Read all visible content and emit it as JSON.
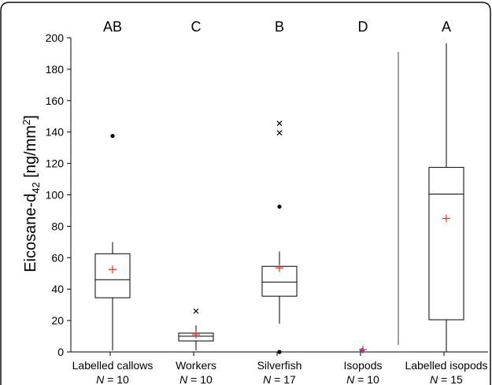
{
  "chart_data": {
    "type": "box",
    "ylabel": "Eicosane-d42 [ng/mm2]",
    "ylabel_parts": {
      "base": "Eicosane-d",
      "sub": "42",
      "unit_open": " [ng/mm",
      "sup": "2",
      "unit_close": "]"
    },
    "ylim": [
      0,
      200
    ],
    "yticks": [
      0,
      20,
      40,
      60,
      80,
      100,
      120,
      140,
      160,
      180,
      200
    ],
    "grid": false,
    "n_prefix": "N",
    "groups": [
      {
        "name": "Labelled callows",
        "n_text": "= 10",
        "letter": "AB",
        "whisker_low": 1,
        "q1": 34.5,
        "median": 46,
        "q3": 62.5,
        "whisker_high": 70,
        "mean": 52.5,
        "outliers": [
          {
            "y": 137.5,
            "symbol": "dot"
          }
        ]
      },
      {
        "name": "Workers",
        "n_text": "= 10",
        "letter": "C",
        "whisker_low": 1,
        "q1": 7,
        "median": 10,
        "q3": 12,
        "whisker_high": 17,
        "mean": 11,
        "outliers": [
          {
            "y": 26,
            "symbol": "cross"
          }
        ]
      },
      {
        "name": "Silverfish",
        "n_text": "= 17",
        "letter": "B",
        "whisker_low": 18,
        "q1": 35.5,
        "median": 44.5,
        "q3": 54.5,
        "whisker_high": 64,
        "mean": 53.5,
        "outliers": [
          {
            "y": 145.5,
            "symbol": "cross"
          },
          {
            "y": 139.5,
            "symbol": "cross"
          },
          {
            "y": 92.5,
            "symbol": "dot"
          },
          {
            "y": 0,
            "symbol": "dot"
          }
        ]
      },
      {
        "name": "Isopods",
        "n_text": "= 10",
        "letter": "D",
        "whisker_low": 0,
        "q1": 0,
        "median": 0.5,
        "q3": 1,
        "whisker_high": 1,
        "mean": 1.5,
        "outliers": []
      },
      {
        "name": "Labelled isopods",
        "n_text": "= 15",
        "letter": "A",
        "whisker_low": 0,
        "q1": 20.5,
        "median": 100.5,
        "q3": 117.5,
        "whisker_high": 196.5,
        "mean": 85,
        "outliers": []
      }
    ],
    "colors": {
      "mean_marker": "#e8302a",
      "isopod_median": "#2b5fd9",
      "lines": "#000000"
    }
  }
}
